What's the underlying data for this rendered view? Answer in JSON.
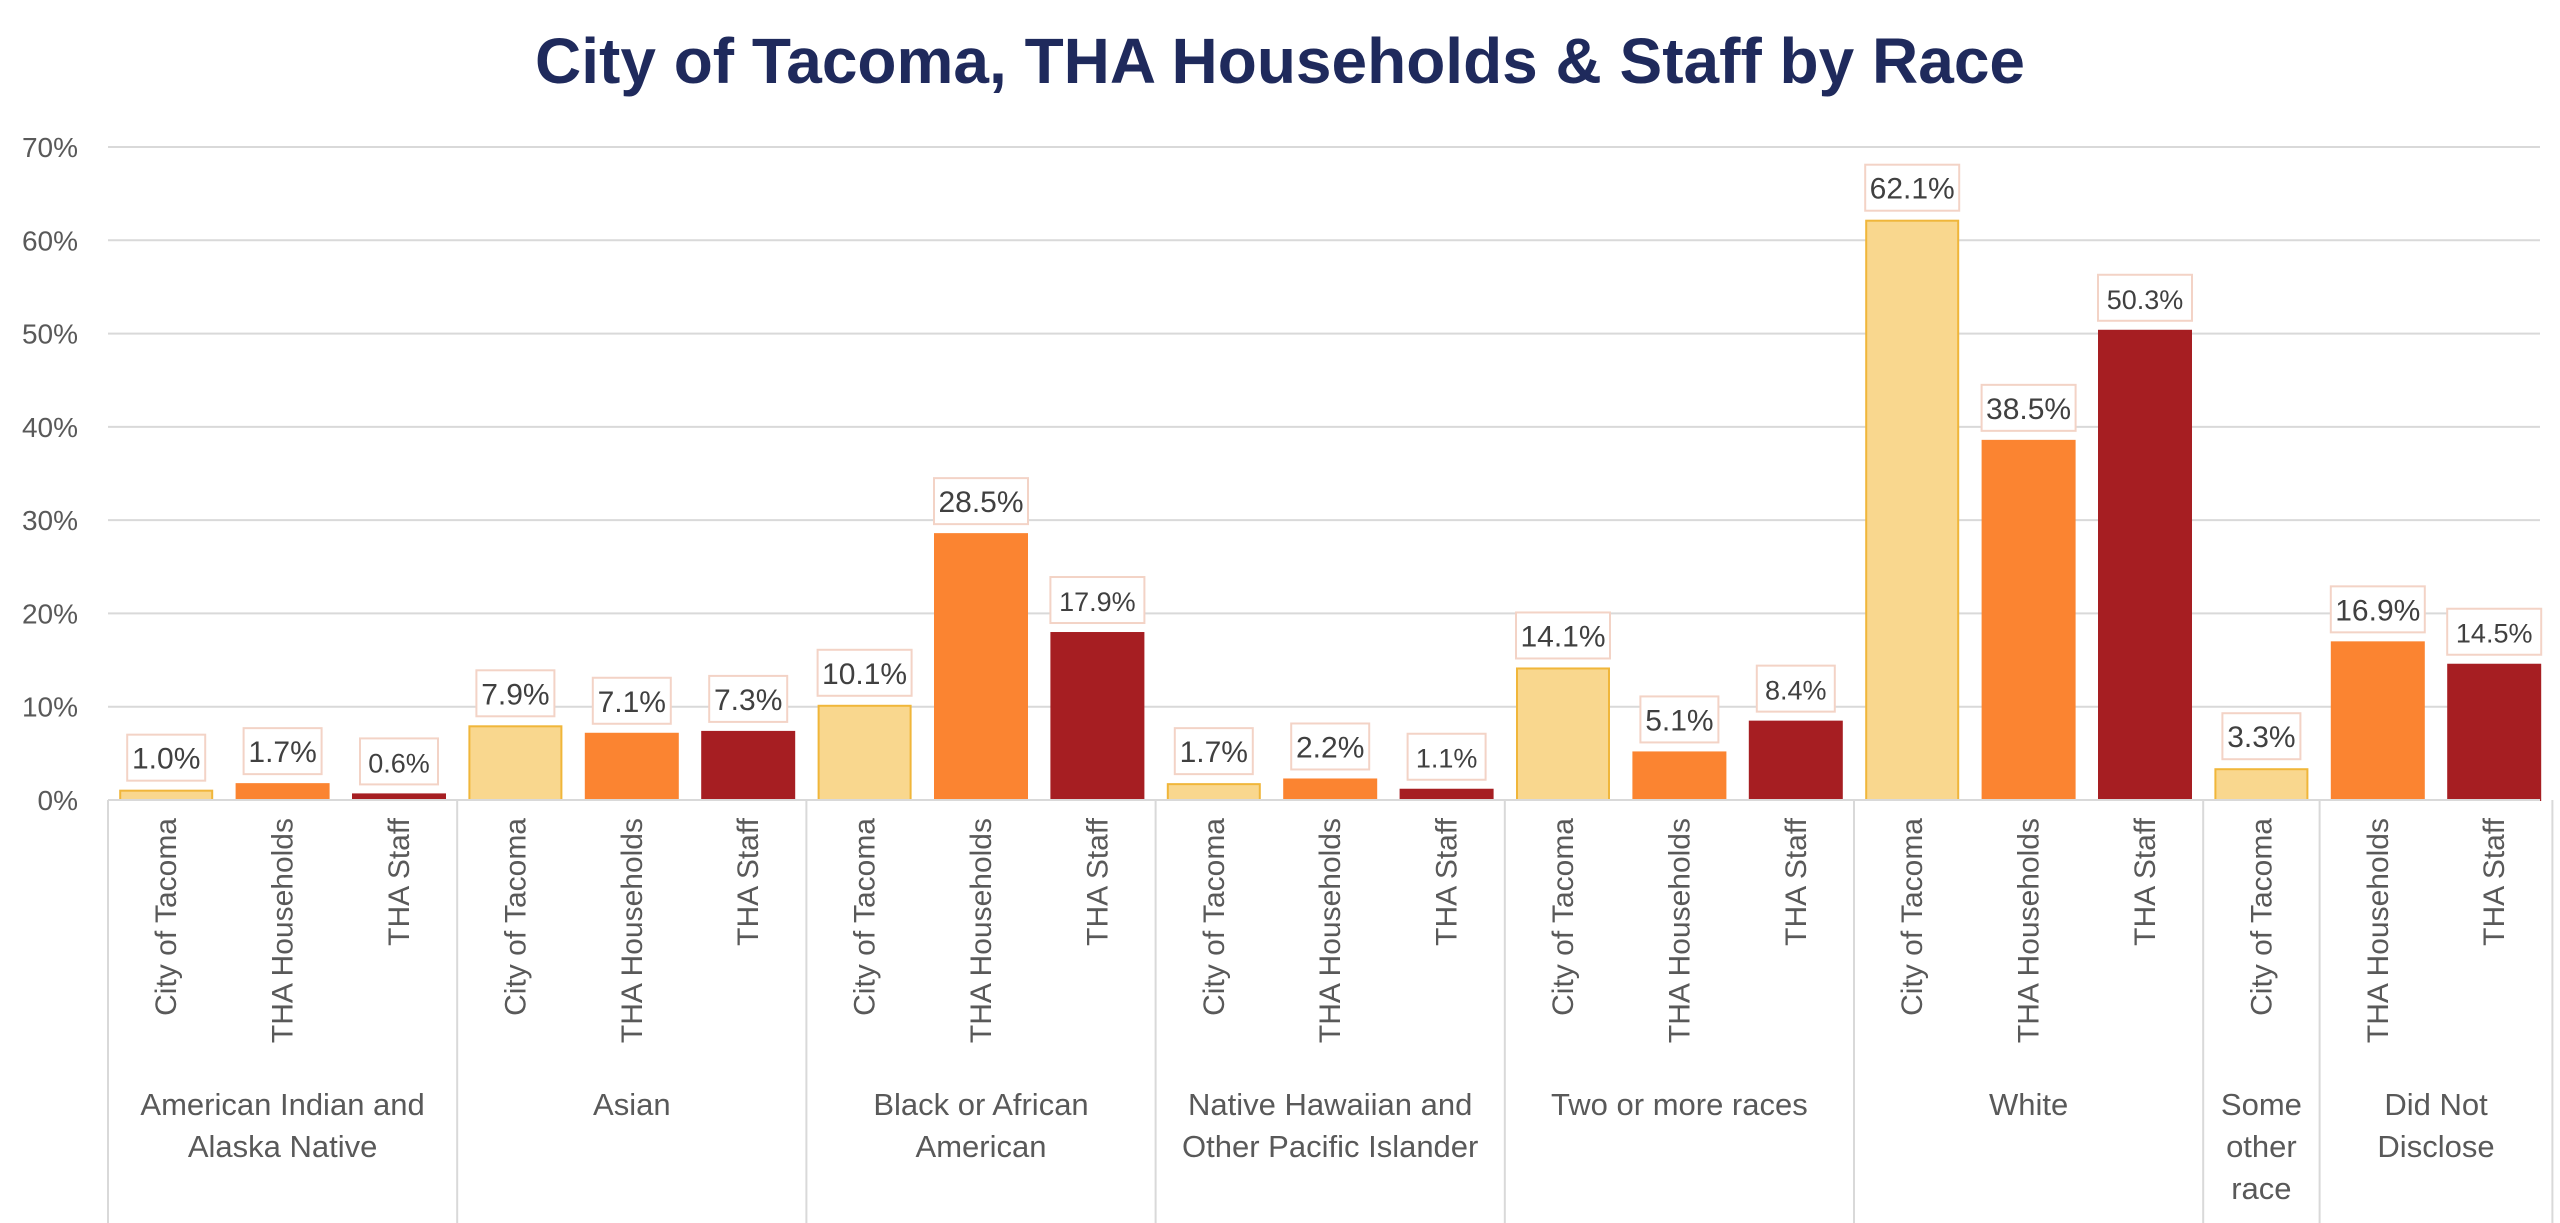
{
  "chart_data": {
    "type": "bar",
    "title": "City of Tacoma, THA Households & Staff by Race",
    "ylim": [
      0,
      70
    ],
    "yticks": [
      "0%",
      "10%",
      "20%",
      "30%",
      "40%",
      "50%",
      "60%",
      "70%"
    ],
    "grid": true,
    "groups": [
      {
        "label": [
          "American Indian and",
          "Alaska Native"
        ],
        "bars": [
          {
            "category": "City of Tacoma",
            "value": 1.0,
            "label": "1.0%"
          },
          {
            "category": "THA Households",
            "value": 1.7,
            "label": "1.7%"
          },
          {
            "category": "THA Staff",
            "value": 0.6,
            "label": "0.6%"
          }
        ]
      },
      {
        "label": [
          "Asian"
        ],
        "bars": [
          {
            "category": "City of Tacoma",
            "value": 7.9,
            "label": "7.9%"
          },
          {
            "category": "THA Households",
            "value": 7.1,
            "label": "7.1%"
          },
          {
            "category": "THA Staff",
            "value": 7.3,
            "label": "7.3%"
          }
        ]
      },
      {
        "label": [
          "Black or African",
          "American"
        ],
        "bars": [
          {
            "category": "City of Tacoma",
            "value": 10.1,
            "label": "10.1%"
          },
          {
            "category": "THA Households",
            "value": 28.5,
            "label": "28.5%"
          },
          {
            "category": "THA Staff",
            "value": 17.9,
            "label": "17.9%"
          }
        ]
      },
      {
        "label": [
          "Native Hawaiian and",
          "Other Pacific Islander"
        ],
        "bars": [
          {
            "category": "City of Tacoma",
            "value": 1.7,
            "label": "1.7%"
          },
          {
            "category": "THA Households",
            "value": 2.2,
            "label": "2.2%"
          },
          {
            "category": "THA Staff",
            "value": 1.1,
            "label": "1.1%"
          }
        ]
      },
      {
        "label": [
          "Two or more races"
        ],
        "bars": [
          {
            "category": "City of Tacoma",
            "value": 14.1,
            "label": "14.1%"
          },
          {
            "category": "THA Households",
            "value": 5.1,
            "label": "5.1%"
          },
          {
            "category": "THA Staff",
            "value": 8.4,
            "label": "8.4%"
          }
        ]
      },
      {
        "label": [
          "White"
        ],
        "bars": [
          {
            "category": "City of Tacoma",
            "value": 62.1,
            "label": "62.1%"
          },
          {
            "category": "THA Households",
            "value": 38.5,
            "label": "38.5%"
          },
          {
            "category": "THA Staff",
            "value": 50.3,
            "label": "50.3%"
          }
        ]
      },
      {
        "label": [
          "Some",
          "other",
          "race"
        ],
        "bars": [
          {
            "category": "City of Tacoma",
            "value": 3.3,
            "label": "3.3%"
          }
        ]
      },
      {
        "label": [
          "Did Not",
          "Disclose"
        ],
        "bars": [
          {
            "category": "THA Households",
            "value": 16.9,
            "label": "16.9%"
          },
          {
            "category": "THA Staff",
            "value": 14.5,
            "label": "14.5%"
          }
        ]
      }
    ],
    "series_colors": {
      "City of Tacoma": {
        "fill": "#f9d78e",
        "stroke": "#f0b63a"
      },
      "THA Households": {
        "fill": "#fb8431",
        "stroke": "#fb8431"
      },
      "THA Staff": {
        "fill": "#a61e22",
        "stroke": "#a61e22"
      }
    },
    "grid_color": "#d9d9d9",
    "text_color": "#595959",
    "title_color": "#1f2a5c"
  }
}
